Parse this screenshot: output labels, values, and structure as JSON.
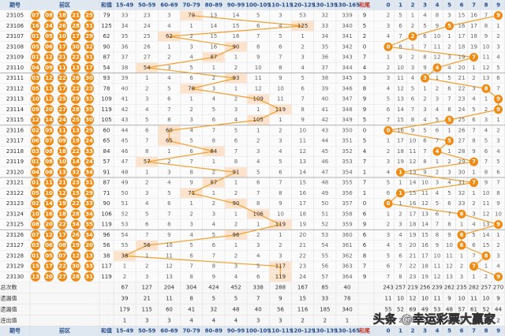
{
  "header": {
    "issue": "期号",
    "front": "前区",
    "sum": "和值",
    "ranges": [
      "15-49",
      "50-59",
      "60-69",
      "70-79",
      "80-89",
      "90-99",
      "100-109",
      "110-119",
      "120-129",
      "130-139",
      "130-165"
    ],
    "tail": "和尾",
    "digits": [
      "0",
      "1",
      "2",
      "3",
      "4",
      "5",
      "6",
      "7",
      "8",
      "9"
    ]
  },
  "rows": [
    {
      "issue": "23105",
      "balls": [
        "07",
        "08",
        "18",
        "21",
        "25"
      ],
      "sum": 79,
      "ranges": [
        33,
        23,
        3,
        79,
        13,
        14,
        5,
        3,
        53,
        32,
        339
      ],
      "tail": 9,
      "tails": [
        2,
        5,
        1,
        4,
        8,
        3,
        15,
        16,
        7,
        9
      ]
    },
    {
      "issue": "23106",
      "balls": [
        "16",
        "24",
        "26",
        "28",
        "31"
      ],
      "sum": 125,
      "ranges": [
        34,
        24,
        4,
        1,
        14,
        15,
        6,
        4,
        125,
        33,
        340
      ],
      "tail": 5,
      "tails": [
        3,
        6,
        2,
        5,
        9,
        5,
        16,
        17,
        8,
        1
      ]
    },
    {
      "issue": "23107",
      "balls": [
        "01",
        "05",
        "10",
        "17",
        "29"
      ],
      "sum": 62,
      "ranges": [
        35,
        25,
        62,
        2,
        15,
        16,
        7,
        5,
        1,
        34,
        341
      ],
      "tail": 2,
      "tails": [
        4,
        7,
        2,
        6,
        10,
        1,
        17,
        18,
        9,
        2
      ]
    },
    {
      "issue": "23108",
      "balls": [
        "05",
        "06",
        "17",
        "30",
        "32"
      ],
      "sum": 90,
      "ranges": [
        36,
        26,
        1,
        3,
        16,
        90,
        8,
        6,
        2,
        35,
        342
      ],
      "tail": 0,
      "tails": [
        0,
        8,
        1,
        7,
        11,
        2,
        18,
        19,
        10,
        3
      ]
    },
    {
      "issue": "23109",
      "balls": [
        "01",
        "12",
        "21",
        "22",
        "31"
      ],
      "sum": 87,
      "ranges": [
        37,
        27,
        2,
        4,
        87,
        1,
        9,
        7,
        3,
        36,
        343
      ],
      "tail": 7,
      "tails": [
        1,
        9,
        2,
        8,
        12,
        3,
        19,
        7,
        11,
        4
      ]
    },
    {
      "issue": "23110",
      "balls": [
        "04",
        "09",
        "11",
        "13",
        "17"
      ],
      "sum": 54,
      "ranges": [
        38,
        54,
        3,
        5,
        1,
        2,
        10,
        8,
        4,
        37,
        344
      ],
      "tail": 4,
      "tails": [
        2,
        10,
        3,
        9,
        4,
        4,
        20,
        1,
        12,
        5
      ]
    },
    {
      "issue": "23111",
      "balls": [
        "03",
        "12",
        "22",
        "26",
        "30"
      ],
      "sum": 93,
      "ranges": [
        39,
        1,
        4,
        6,
        2,
        93,
        11,
        9,
        5,
        38,
        345
      ],
      "tail": 3,
      "tails": [
        3,
        11,
        4,
        3,
        1,
        5,
        21,
        2,
        13,
        6
      ]
    },
    {
      "issue": "23112",
      "balls": [
        "05",
        "11",
        "17",
        "22",
        "23"
      ],
      "sum": 78,
      "ranges": [
        40,
        2,
        5,
        78,
        3,
        1,
        12,
        10,
        6,
        39,
        346
      ],
      "tail": 8,
      "tails": [
        4,
        12,
        5,
        1,
        2,
        6,
        22,
        3,
        8,
        7
      ]
    },
    {
      "issue": "23113",
      "balls": [
        "10",
        "12",
        "25",
        "29",
        "33"
      ],
      "sum": 109,
      "ranges": [
        41,
        3,
        6,
        1,
        4,
        2,
        109,
        11,
        7,
        40,
        347
      ],
      "tail": 9,
      "tails": [
        5,
        13,
        6,
        2,
        3,
        7,
        23,
        4,
        1,
        9
      ]
    },
    {
      "issue": "23114",
      "balls": [
        "09",
        "20",
        "27",
        "28",
        "35"
      ],
      "sum": 119,
      "ranges": [
        42,
        4,
        7,
        2,
        5,
        3,
        1,
        119,
        8,
        41,
        348
      ],
      "tail": 9,
      "tails": [
        6,
        14,
        7,
        3,
        4,
        8,
        24,
        5,
        2,
        9
      ]
    },
    {
      "issue": "23115",
      "balls": [
        "12",
        "14",
        "24",
        "25",
        "30"
      ],
      "sum": 105,
      "ranges": [
        43,
        5,
        8,
        3,
        6,
        4,
        105,
        1,
        9,
        42,
        349
      ],
      "tail": 5,
      "tails": [
        7,
        15,
        8,
        4,
        5,
        5,
        25,
        6,
        3,
        1
      ]
    },
    {
      "issue": "23116",
      "balls": [
        "02",
        "05",
        "11",
        "13",
        "29"
      ],
      "sum": 60,
      "ranges": [
        44,
        6,
        60,
        4,
        7,
        5,
        1,
        2,
        10,
        43,
        350
      ],
      "tail": 0,
      "tails": [
        0,
        16,
        9,
        5,
        6,
        1,
        26,
        7,
        4,
        2
      ]
    },
    {
      "issue": "23117",
      "balls": [
        "06",
        "07",
        "09",
        "19",
        "24"
      ],
      "sum": 65,
      "ranges": [
        45,
        7,
        65,
        5,
        8,
        6,
        2,
        3,
        11,
        44,
        351
      ],
      "tail": 5,
      "tails": [
        1,
        17,
        10,
        6,
        7,
        5,
        27,
        8,
        5,
        3
      ]
    },
    {
      "issue": "23118",
      "balls": [
        "03",
        "08",
        "18",
        "22",
        "33"
      ],
      "sum": 84,
      "ranges": [
        46,
        8,
        1,
        6,
        84,
        7,
        3,
        4,
        12,
        45,
        352
      ],
      "tail": 4,
      "tails": [
        2,
        18,
        11,
        7,
        4,
        1,
        28,
        9,
        6,
        4
      ]
    },
    {
      "issue": "23119",
      "balls": [
        "01",
        "08",
        "10",
        "14",
        "24"
      ],
      "sum": 57,
      "ranges": [
        47,
        57,
        2,
        7,
        1,
        8,
        4,
        5,
        13,
        46,
        353
      ],
      "tail": 7,
      "tails": [
        3,
        19,
        12,
        8,
        1,
        2,
        29,
        7,
        7,
        5
      ]
    },
    {
      "issue": "23120",
      "balls": [
        "04",
        "08",
        "13",
        "32",
        "34"
      ],
      "sum": 91,
      "ranges": [
        48,
        1,
        3,
        8,
        2,
        91,
        5,
        6,
        14,
        47,
        354
      ],
      "tail": 1,
      "tails": [
        4,
        1,
        13,
        9,
        2,
        3,
        30,
        1,
        8,
        6
      ]
    },
    {
      "issue": "23121",
      "balls": [
        "01",
        "11",
        "21",
        "23",
        "31"
      ],
      "sum": 87,
      "ranges": [
        49,
        2,
        4,
        9,
        87,
        1,
        6,
        7,
        15,
        48,
        355
      ],
      "tail": 7,
      "tails": [
        5,
        1,
        14,
        10,
        3,
        4,
        31,
        7,
        9,
        7
      ]
    },
    {
      "issue": "23122",
      "balls": [
        "05",
        "10",
        "12",
        "15",
        "29"
      ],
      "sum": 71,
      "ranges": [
        50,
        3,
        5,
        71,
        1,
        2,
        7,
        8,
        16,
        49,
        356
      ],
      "tail": 1,
      "tails": [
        6,
        1,
        15,
        11,
        4,
        5,
        32,
        1,
        10,
        8
      ]
    },
    {
      "issue": "23123",
      "balls": [
        "02",
        "14",
        "19",
        "22",
        "33"
      ],
      "sum": 90,
      "ranges": [
        51,
        4,
        6,
        1,
        2,
        90,
        8,
        9,
        17,
        50,
        357
      ],
      "tail": 0,
      "tails": [
        0,
        1,
        16,
        12,
        5,
        6,
        33,
        2,
        11,
        9
      ]
    },
    {
      "issue": "23124",
      "balls": [
        "10",
        "16",
        "18",
        "28",
        "34"
      ],
      "sum": 106,
      "ranges": [
        52,
        5,
        7,
        2,
        3,
        1,
        106,
        10,
        18,
        51,
        358
      ],
      "tail": 6,
      "tails": [
        1,
        2,
        17,
        13,
        6,
        7,
        6,
        3,
        12,
        10
      ]
    },
    {
      "issue": "23125",
      "balls": [
        "08",
        "20",
        "22",
        "34",
        "35"
      ],
      "sum": 119,
      "ranges": [
        53,
        6,
        8,
        3,
        4,
        2,
        1,
        119,
        19,
        52,
        359
      ],
      "tail": 9,
      "tails": [
        2,
        3,
        18,
        14,
        7,
        8,
        1,
        4,
        13,
        9
      ]
    },
    {
      "issue": "23126",
      "balls": [
        "07",
        "12",
        "17",
        "26",
        "34"
      ],
      "sum": 96,
      "ranges": [
        54,
        7,
        9,
        4,
        5,
        96,
        2,
        1,
        20,
        53,
        360
      ],
      "tail": 6,
      "tails": [
        3,
        4,
        19,
        15,
        8,
        9,
        6,
        5,
        14,
        1
      ]
    },
    {
      "issue": "23127",
      "balls": [
        "03",
        "06",
        "08",
        "19",
        "20"
      ],
      "sum": 56,
      "ranges": [
        55,
        56,
        10,
        5,
        6,
        1,
        3,
        2,
        21,
        54,
        361
      ],
      "tail": 6,
      "tails": [
        4,
        5,
        20,
        16,
        9,
        10,
        6,
        6,
        15,
        2
      ]
    },
    {
      "issue": "23128",
      "balls": [
        "01",
        "05",
        "07",
        "12",
        "13"
      ],
      "sum": 38,
      "ranges": [
        38,
        1,
        11,
        6,
        7,
        2,
        4,
        3,
        22,
        55,
        362
      ],
      "tail": 8,
      "tails": [
        5,
        6,
        21,
        17,
        10,
        11,
        1,
        7,
        8,
        3
      ]
    },
    {
      "issue": "23129",
      "balls": [
        "15",
        "17",
        "22",
        "30",
        "33"
      ],
      "sum": 117,
      "ranges": [
        1,
        2,
        12,
        7,
        8,
        3,
        5,
        117,
        23,
        56,
        363
      ],
      "tail": 7,
      "tails": [
        6,
        7,
        22,
        18,
        11,
        12,
        2,
        7,
        1,
        4
      ]
    },
    {
      "issue": "23130",
      "balls": [
        "13",
        "20",
        "27",
        "28",
        "31"
      ],
      "sum": 119,
      "ranges": [
        2,
        3,
        13,
        8,
        9,
        4,
        6,
        119,
        24,
        57,
        364
      ],
      "tail": 9,
      "tails": [
        7,
        8,
        23,
        19,
        12,
        13,
        3,
        1,
        2,
        9
      ]
    }
  ],
  "summary": [
    {
      "label": "出现总次数",
      "ranges": [
        67,
        127,
        204,
        304,
        424,
        452,
        338,
        288,
        167,
        85,
        40
      ],
      "tails": [
        243,
        257,
        219,
        256,
        239,
        262,
        235,
        282,
        257,
        270
      ]
    },
    {
      "label": "平均遗漏值",
      "ranges": [
        39,
        21,
        11,
        8,
        5,
        5,
        7,
        9,
        15,
        33,
        78
      ],
      "tails": [
        11,
        10,
        12,
        10,
        11,
        9,
        10,
        11,
        10,
        9
      ]
    },
    {
      "label": "最大遗漏值",
      "ranges": [
        179,
        115,
        60,
        41,
        32,
        48,
        40,
        56,
        116,
        185,
        340
      ],
      "tails": [
        55,
        52,
        69,
        49,
        53,
        48,
        57,
        61,
        52,
        44
      ]
    },
    {
      "label": "最大连出值",
      "ranges": [
        1,
        3,
        3,
        4,
        4,
        4,
        3,
        3,
        2,
        2,
        1
      ],
      "tails": [
        3,
        2,
        3,
        2,
        3,
        2,
        3,
        4,
        3,
        2
      ]
    }
  ],
  "watermark": "头条 @幸运彩票大赢家"
}
